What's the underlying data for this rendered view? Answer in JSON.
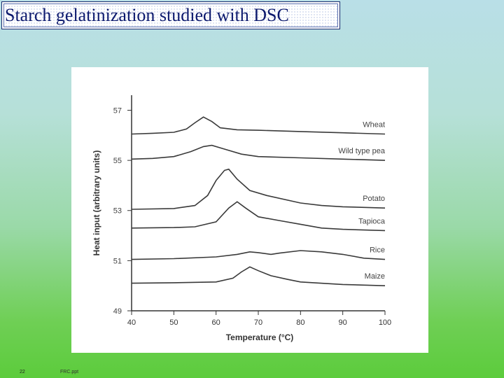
{
  "slide": {
    "title": "Starch gelatinization studied with DSC",
    "page_number": "22",
    "file_name": "FRC.ppt"
  },
  "chart_data": {
    "type": "line",
    "xlabel": "Temperature (°C)",
    "ylabel": "Heat input (arbitrary units)",
    "xlim": [
      40,
      100
    ],
    "ylim": [
      49,
      57.6
    ],
    "x_ticks": [
      "40",
      "50",
      "60",
      "70",
      "80",
      "90",
      "100"
    ],
    "y_ticks": [
      "49",
      "51",
      "53",
      "55",
      "57"
    ],
    "grid": false,
    "series": [
      {
        "name": "Wheat",
        "points": [
          [
            40,
            56.05
          ],
          [
            45,
            56.08
          ],
          [
            50,
            56.12
          ],
          [
            53,
            56.25
          ],
          [
            55,
            56.5
          ],
          [
            57,
            56.73
          ],
          [
            59,
            56.55
          ],
          [
            61,
            56.3
          ],
          [
            65,
            56.22
          ],
          [
            70,
            56.2
          ],
          [
            80,
            56.15
          ],
          [
            90,
            56.1
          ],
          [
            100,
            56.05
          ]
        ]
      },
      {
        "name": "Wild type pea",
        "points": [
          [
            40,
            55.05
          ],
          [
            45,
            55.08
          ],
          [
            50,
            55.15
          ],
          [
            54,
            55.35
          ],
          [
            57,
            55.55
          ],
          [
            59,
            55.6
          ],
          [
            62,
            55.45
          ],
          [
            66,
            55.25
          ],
          [
            70,
            55.15
          ],
          [
            80,
            55.1
          ],
          [
            90,
            55.05
          ],
          [
            100,
            55.0
          ]
        ]
      },
      {
        "name": "Potato",
        "points": [
          [
            40,
            53.05
          ],
          [
            50,
            53.08
          ],
          [
            55,
            53.2
          ],
          [
            58,
            53.6
          ],
          [
            60,
            54.2
          ],
          [
            62,
            54.6
          ],
          [
            63,
            54.65
          ],
          [
            65,
            54.25
          ],
          [
            68,
            53.8
          ],
          [
            72,
            53.6
          ],
          [
            80,
            53.3
          ],
          [
            85,
            53.2
          ],
          [
            90,
            53.15
          ],
          [
            100,
            53.1
          ]
        ]
      },
      {
        "name": "Tapioca",
        "points": [
          [
            40,
            52.3
          ],
          [
            50,
            52.32
          ],
          [
            55,
            52.35
          ],
          [
            60,
            52.55
          ],
          [
            63,
            53.1
          ],
          [
            65,
            53.35
          ],
          [
            67,
            53.1
          ],
          [
            70,
            52.75
          ],
          [
            75,
            52.6
          ],
          [
            80,
            52.45
          ],
          [
            85,
            52.3
          ],
          [
            90,
            52.25
          ],
          [
            100,
            52.2
          ]
        ]
      },
      {
        "name": "Rice",
        "points": [
          [
            40,
            51.05
          ],
          [
            50,
            51.08
          ],
          [
            60,
            51.15
          ],
          [
            65,
            51.25
          ],
          [
            68,
            51.35
          ],
          [
            70,
            51.32
          ],
          [
            73,
            51.25
          ],
          [
            75,
            51.3
          ],
          [
            80,
            51.4
          ],
          [
            85,
            51.35
          ],
          [
            90,
            51.25
          ],
          [
            95,
            51.1
          ],
          [
            100,
            51.05
          ]
        ]
      },
      {
        "name": "Maize",
        "points": [
          [
            40,
            50.1
          ],
          [
            50,
            50.12
          ],
          [
            60,
            50.15
          ],
          [
            64,
            50.3
          ],
          [
            66,
            50.55
          ],
          [
            68,
            50.75
          ],
          [
            70,
            50.6
          ],
          [
            73,
            50.4
          ],
          [
            77,
            50.25
          ],
          [
            80,
            50.15
          ],
          [
            90,
            50.05
          ],
          [
            100,
            50.0
          ]
        ]
      }
    ]
  }
}
